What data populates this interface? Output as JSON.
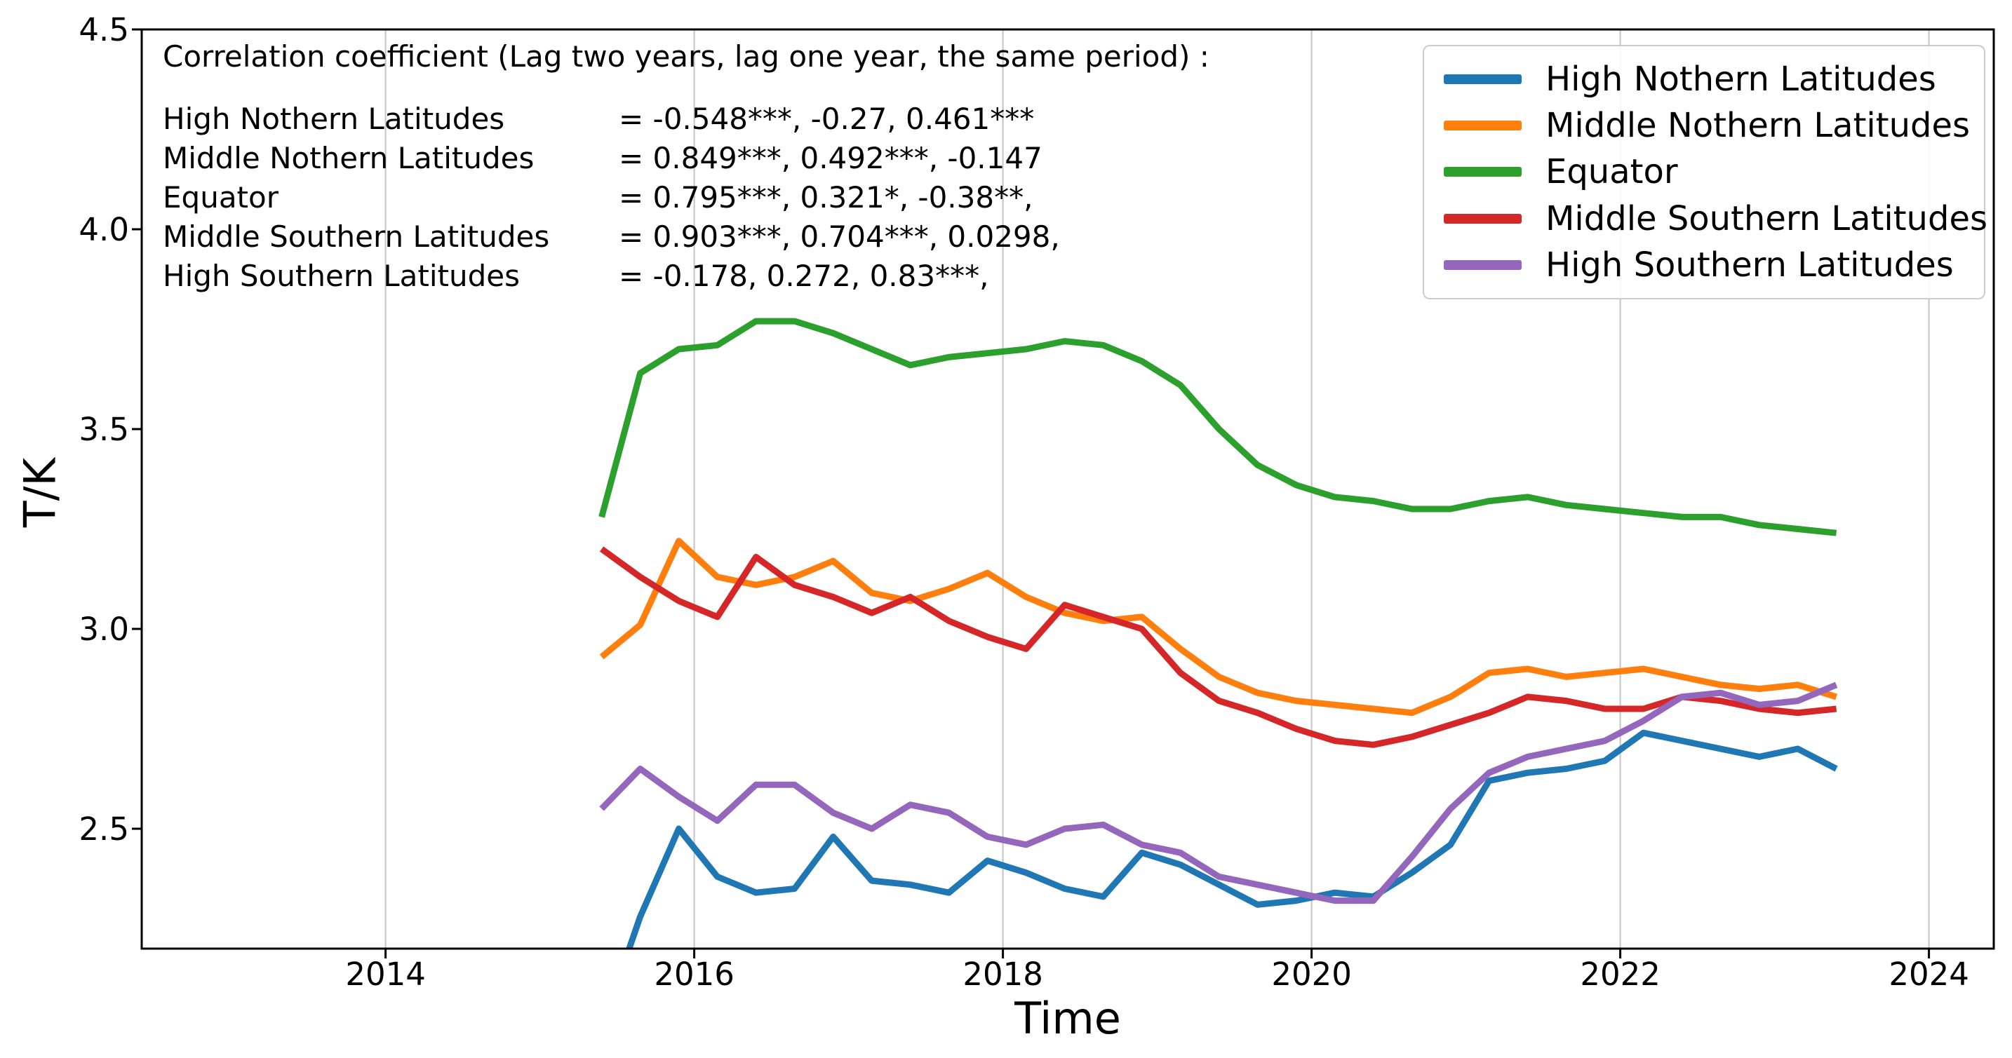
{
  "chart_data": {
    "type": "line",
    "title": "",
    "xlabel": "Time",
    "ylabel": "T/K",
    "xlim": [
      2012.42,
      2024.42
    ],
    "ylim": [
      2.2,
      4.5
    ],
    "x_ticks": [
      2014,
      2016,
      2018,
      2020,
      2022,
      2024
    ],
    "y_ticks": [
      2.5,
      3.0,
      3.5,
      4.0,
      4.5
    ],
    "grid": "vertical-only",
    "grid_color": "#c4c4c4",
    "legend_position": "upper right",
    "x": [
      2015.4,
      2015.65,
      2015.9,
      2016.15,
      2016.4,
      2016.65,
      2016.9,
      2017.15,
      2017.4,
      2017.65,
      2017.9,
      2018.15,
      2018.4,
      2018.65,
      2018.9,
      2019.15,
      2019.4,
      2019.65,
      2019.9,
      2020.15,
      2020.4,
      2020.65,
      2020.9,
      2021.15,
      2021.4,
      2021.65,
      2021.9,
      2022.15,
      2022.4,
      2022.65,
      2022.9,
      2023.15,
      2023.4
    ],
    "series": [
      {
        "name": "High Nothern Latitudes",
        "color": "#1f77b4",
        "values": [
          2.0,
          2.28,
          2.5,
          2.38,
          2.34,
          2.35,
          2.48,
          2.37,
          2.36,
          2.34,
          2.42,
          2.39,
          2.35,
          2.33,
          2.44,
          2.41,
          2.36,
          2.31,
          2.32,
          2.34,
          2.33,
          2.39,
          2.46,
          2.62,
          2.64,
          2.65,
          2.67,
          2.74,
          2.72,
          2.7,
          2.68,
          2.7,
          2.65
        ]
      },
      {
        "name": "Middle Nothern Latitudes",
        "color": "#ff7f0e",
        "values": [
          2.93,
          3.01,
          3.22,
          3.13,
          3.11,
          3.13,
          3.17,
          3.09,
          3.07,
          3.1,
          3.14,
          3.08,
          3.04,
          3.02,
          3.03,
          2.95,
          2.88,
          2.84,
          2.82,
          2.81,
          2.8,
          2.79,
          2.83,
          2.89,
          2.9,
          2.88,
          2.89,
          2.9,
          2.88,
          2.86,
          2.85,
          2.86,
          2.83
        ]
      },
      {
        "name": "Equator",
        "color": "#2ca02c",
        "values": [
          3.28,
          3.64,
          3.7,
          3.71,
          3.77,
          3.77,
          3.74,
          3.7,
          3.66,
          3.68,
          3.69,
          3.7,
          3.72,
          3.71,
          3.67,
          3.61,
          3.5,
          3.41,
          3.36,
          3.33,
          3.32,
          3.3,
          3.3,
          3.32,
          3.33,
          3.31,
          3.3,
          3.29,
          3.28,
          3.28,
          3.26,
          3.25,
          3.24
        ]
      },
      {
        "name": "Middle Southern Latitudes",
        "color": "#d62728",
        "values": [
          3.2,
          3.13,
          3.07,
          3.03,
          3.18,
          3.11,
          3.08,
          3.04,
          3.08,
          3.02,
          2.98,
          2.95,
          3.06,
          3.03,
          3.0,
          2.89,
          2.82,
          2.79,
          2.75,
          2.72,
          2.71,
          2.73,
          2.76,
          2.79,
          2.83,
          2.82,
          2.8,
          2.8,
          2.83,
          2.82,
          2.8,
          2.79,
          2.8
        ]
      },
      {
        "name": "High Southern Latitudes",
        "color": "#9467bd",
        "values": [
          2.55,
          2.65,
          2.58,
          2.52,
          2.61,
          2.61,
          2.54,
          2.5,
          2.56,
          2.54,
          2.48,
          2.46,
          2.5,
          2.51,
          2.46,
          2.44,
          2.38,
          2.36,
          2.34,
          2.32,
          2.32,
          2.43,
          2.55,
          2.64,
          2.68,
          2.7,
          2.72,
          2.77,
          2.83,
          2.84,
          2.81,
          2.82,
          2.86
        ]
      }
    ]
  },
  "annotation": {
    "title": "Correlation coefficient (Lag two years, lag one year, the same period) :",
    "rows": [
      {
        "name": "High Nothern Latitudes",
        "value": "= -0.548***, -0.27, 0.461***"
      },
      {
        "name": "Middle Nothern Latitudes",
        "value": "= 0.849***, 0.492***, -0.147"
      },
      {
        "name": "Equator",
        "value": "= 0.795***, 0.321*, -0.38**,"
      },
      {
        "name": "Middle Southern Latitudes",
        "value": "= 0.903***, 0.704***, 0.0298,"
      },
      {
        "name": "High Southern Latitudes",
        "value": "= -0.178, 0.272, 0.83***,"
      }
    ]
  }
}
